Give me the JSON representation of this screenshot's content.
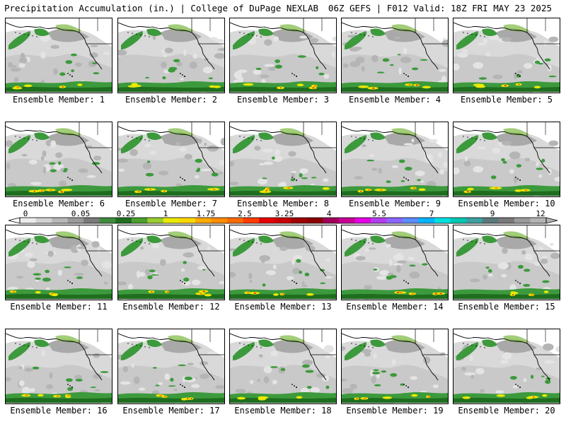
{
  "header": {
    "left_title": "Precipitation Accumulation (in.) | College of DuPage NEXLAB",
    "right_title": "06Z GEFS | F012 Valid: 18Z FRI MAY 23 2025"
  },
  "panels": [
    {
      "label": "Ensemble Member: 1"
    },
    {
      "label": "Ensemble Member: 2"
    },
    {
      "label": "Ensemble Member: 3"
    },
    {
      "label": "Ensemble Member: 4"
    },
    {
      "label": "Ensemble Member: 5"
    },
    {
      "label": "Ensemble Member: 6"
    },
    {
      "label": "Ensemble Member: 7"
    },
    {
      "label": "Ensemble Member: 8"
    },
    {
      "label": "Ensemble Member: 9"
    },
    {
      "label": "Ensemble Member: 10"
    },
    {
      "label": "Ensemble Member: 11"
    },
    {
      "label": "Ensemble Member: 12"
    },
    {
      "label": "Ensemble Member: 13"
    },
    {
      "label": "Ensemble Member: 14"
    },
    {
      "label": "Ensemble Member: 15"
    },
    {
      "label": "Ensemble Member: 16"
    },
    {
      "label": "Ensemble Member: 17"
    },
    {
      "label": "Ensemble Member: 18"
    },
    {
      "label": "Ensemble Member: 19"
    },
    {
      "label": "Ensemble Member: 20"
    }
  ],
  "legend": {
    "labels": [
      "0",
      "0.05",
      "0.25",
      "1",
      "1.75",
      "2.5",
      "3.25",
      "4",
      "5.5",
      "7",
      "9",
      "12"
    ],
    "colors": [
      "#ececec",
      "#d2d2d2",
      "#b8b8b8",
      "#9a9a9a",
      "#7a7a7a",
      "#3c8c3c",
      "#1f6e1f",
      "#4aa02c",
      "#9acd32",
      "#eaea00",
      "#ffd700",
      "#ffaa00",
      "#ff8c00",
      "#ff6a00",
      "#ff3c00",
      "#e60000",
      "#c80000",
      "#a00000",
      "#8b0000",
      "#a0005a",
      "#c80096",
      "#e600e6",
      "#b43cf0",
      "#8c64ff",
      "#5a8cff",
      "#00b4ff",
      "#00e0e0",
      "#00c8b4",
      "#3ca0a0",
      "#5a7a7a",
      "#7a7a7a",
      "#9a9a9a",
      "#b4b4b4"
    ]
  }
}
